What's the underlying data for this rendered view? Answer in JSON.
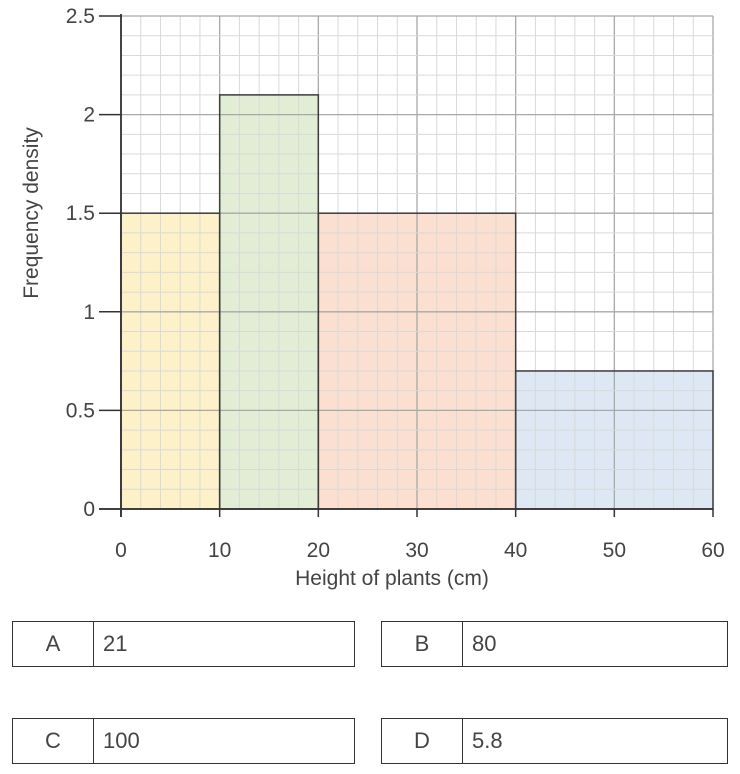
{
  "chart_data": {
    "type": "histogram",
    "xlabel": "Height of plants (cm)",
    "ylabel": "Frequency density",
    "xlim": [
      0,
      60
    ],
    "ylim": [
      0,
      2.5
    ],
    "x_ticks": [
      "0",
      "10",
      "20",
      "30",
      "40",
      "50",
      "60"
    ],
    "y_ticks": [
      "0",
      "0.5",
      "1",
      "1.5",
      "2",
      "2.5"
    ],
    "grid": true,
    "bins": [
      {
        "x0": 0,
        "x1": 10,
        "value": 1.5,
        "color": "#fdf1c9"
      },
      {
        "x0": 10,
        "x1": 20,
        "value": 2.1,
        "color": "#e1edd5"
      },
      {
        "x0": 20,
        "x1": 40,
        "value": 1.5,
        "color": "#fbdfd0"
      },
      {
        "x0": 40,
        "x1": 60,
        "value": 0.7,
        "color": "#dde8f4"
      }
    ]
  },
  "options": [
    {
      "letter": "A",
      "value": "21"
    },
    {
      "letter": "B",
      "value": "80"
    },
    {
      "letter": "C",
      "value": "100"
    },
    {
      "letter": "D",
      "value": "5.8"
    }
  ]
}
